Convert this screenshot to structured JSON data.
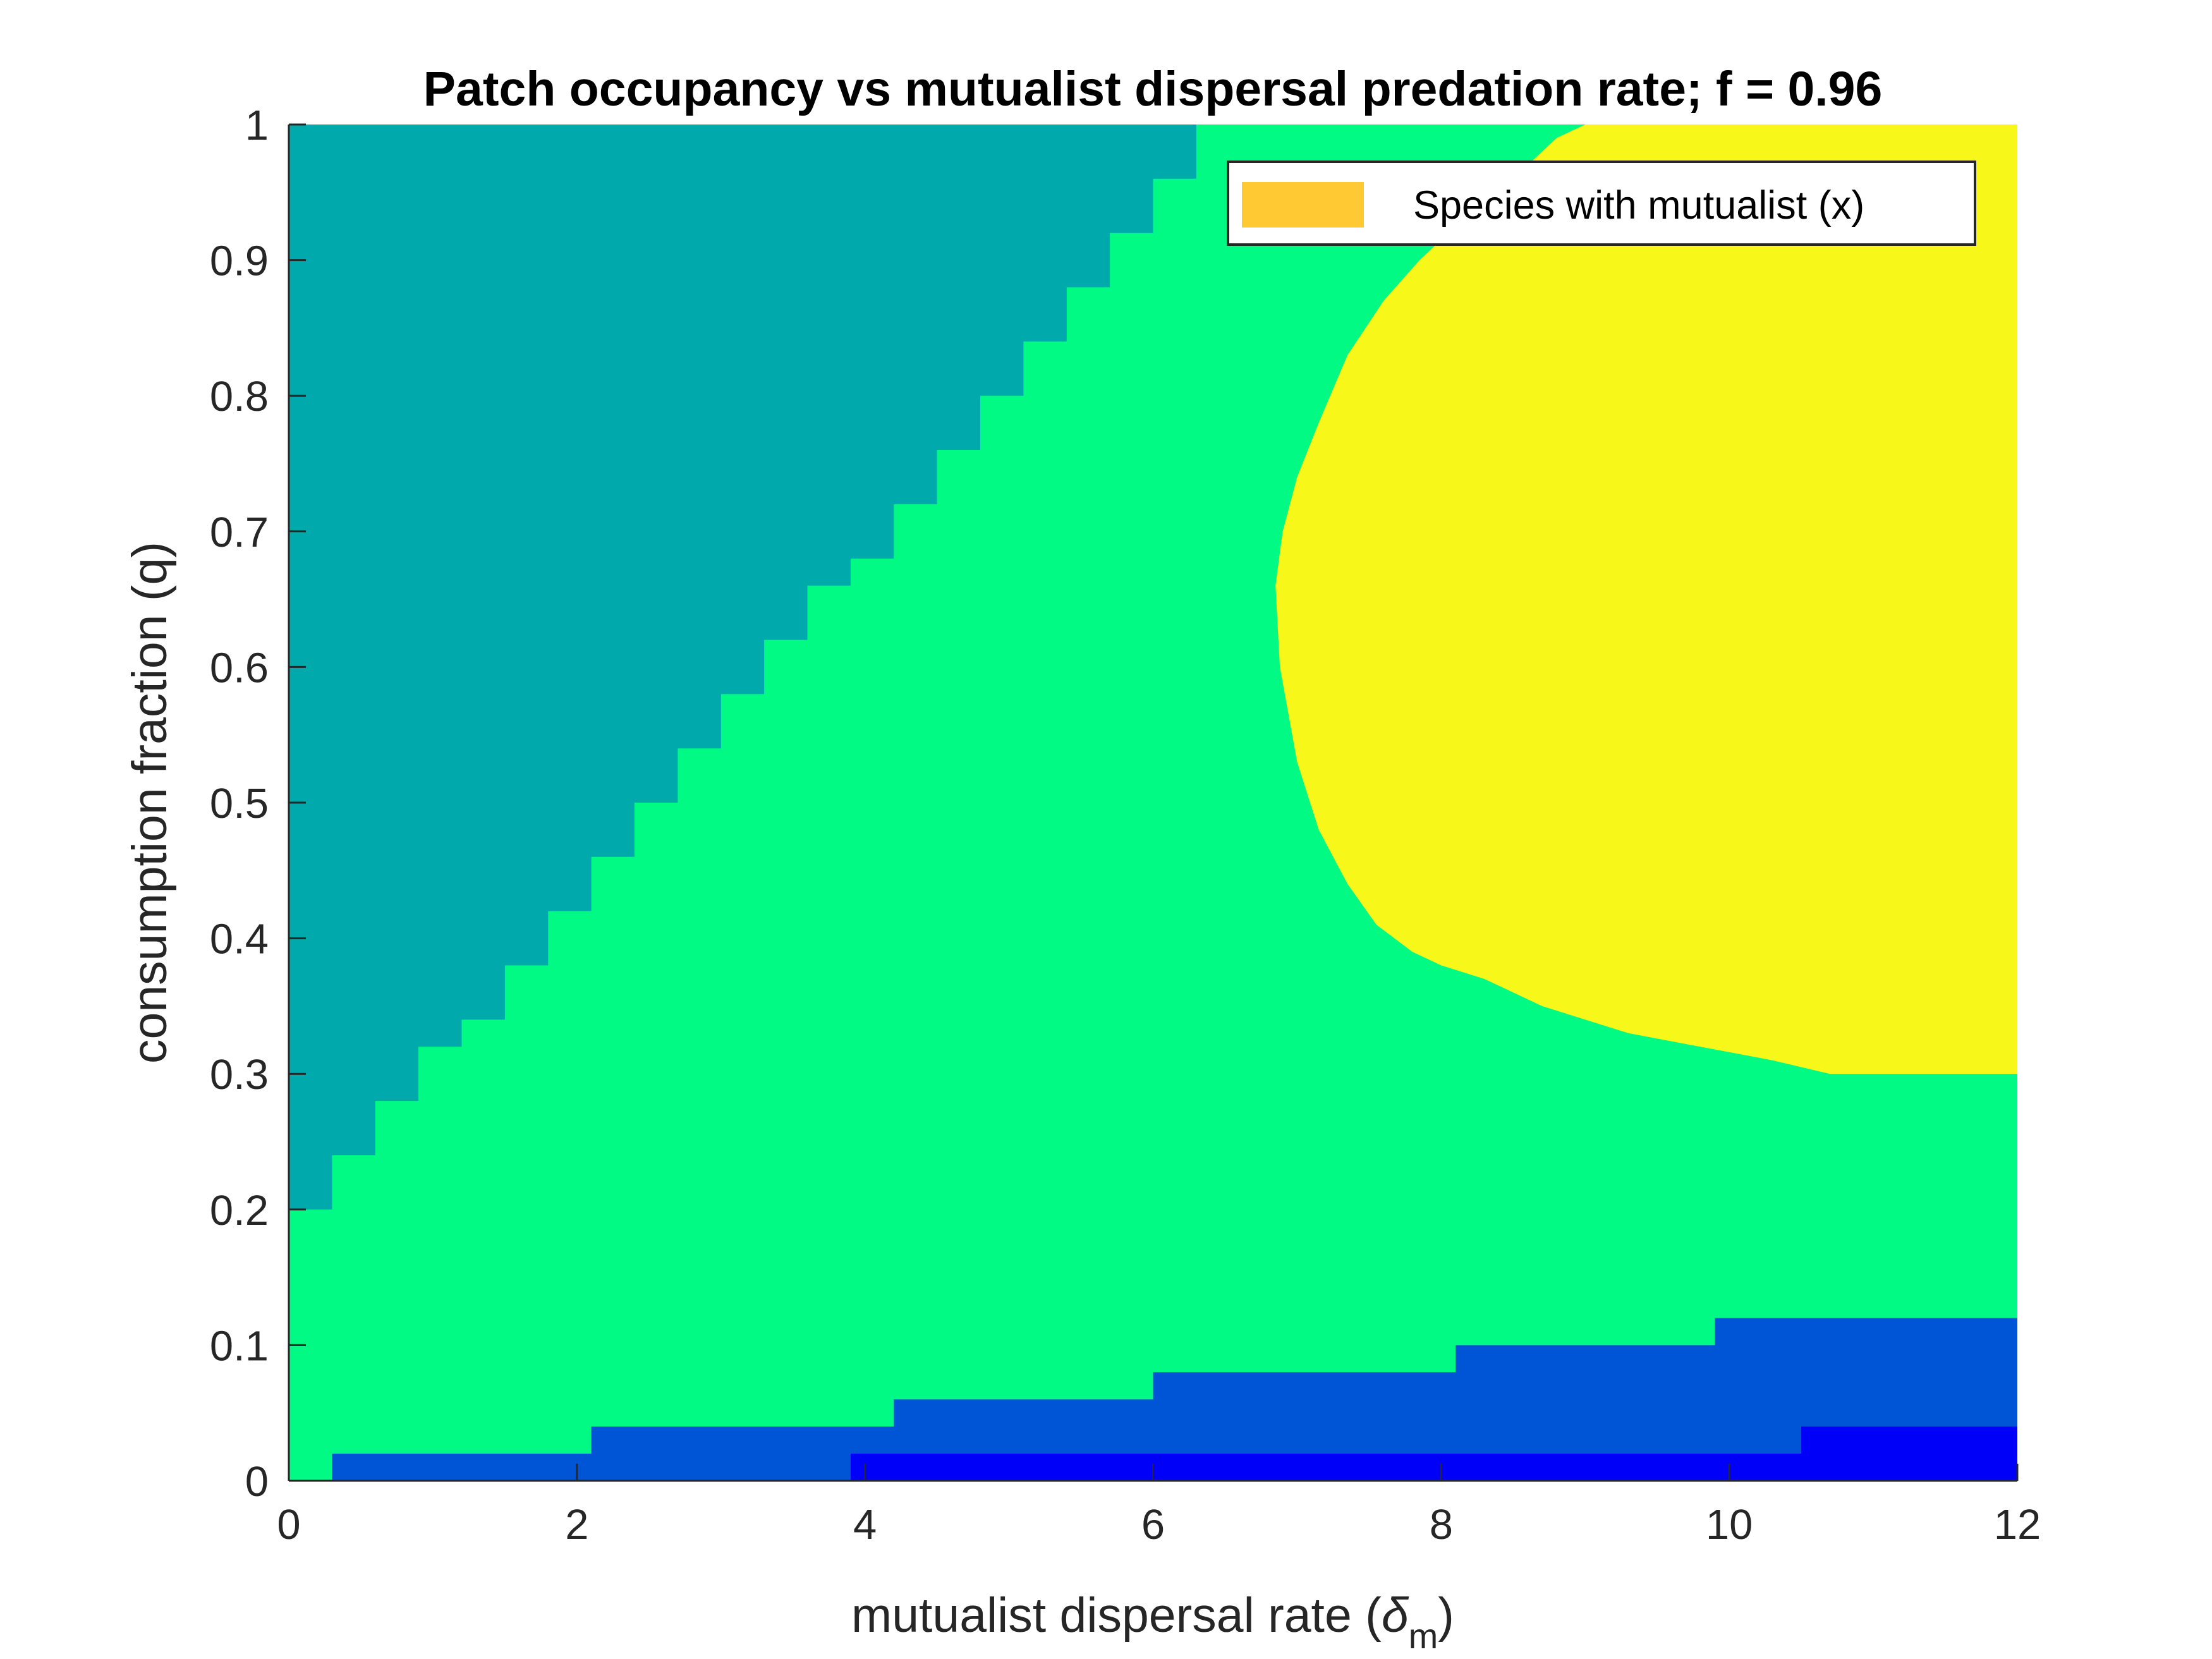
{
  "chart_data": {
    "type": "area",
    "title": "Patch occupancy vs mutualist dispersal predation rate; f = 0.96",
    "xlabel": "mutualist dispersal rate (δm)",
    "xlabel_main": "mutualist dispersal rate (",
    "xlabel_symbol": "δ",
    "xlabel_subscript": "m",
    "xlabel_close": ")",
    "ylabel": "consumption fraction (q)",
    "xlim": [
      0,
      12
    ],
    "ylim": [
      0,
      1
    ],
    "x_ticks": [
      0,
      2,
      4,
      6,
      8,
      10,
      12
    ],
    "y_ticks": [
      0,
      0.1,
      0.2,
      0.3,
      0.4,
      0.5,
      0.6,
      0.7,
      0.8,
      0.9,
      1
    ],
    "grid": false,
    "legend": {
      "position": "top-right",
      "entries": [
        {
          "label": "Species with mutualist (x)",
          "color": "#FFC933"
        }
      ]
    },
    "colors": {
      "teal_region": "#00A9AB",
      "green_region": "#00FA84",
      "yellow_region": "#F7F71A",
      "mid_blue_region": "#0055D6",
      "deep_blue_region": "#0000FA",
      "legend_swatch": "#FFC933"
    },
    "regions": [
      {
        "name": "teal-region",
        "color": "#00A9AB",
        "x": [
          0,
          0,
          6.3,
          6.3,
          6.0,
          6.0,
          5.7,
          5.7,
          5.4,
          5.4,
          5.1,
          5.1,
          4.8,
          4.8,
          4.5,
          4.5,
          4.2,
          4.2,
          3.9,
          3.9,
          3.6,
          3.6,
          3.3,
          3.3,
          3.0,
          3.0,
          2.7,
          2.7,
          2.4,
          2.4,
          2.1,
          2.1,
          1.8,
          1.8,
          1.5,
          1.5,
          1.2,
          1.2,
          0.9,
          0.9,
          0.6,
          0.6,
          0.3,
          0.3
        ],
        "y": [
          0.2,
          1.0,
          1.0,
          0.96,
          0.96,
          0.92,
          0.92,
          0.88,
          0.88,
          0.84,
          0.84,
          0.8,
          0.8,
          0.76,
          0.76,
          0.72,
          0.72,
          0.68,
          0.68,
          0.66,
          0.66,
          0.62,
          0.62,
          0.58,
          0.58,
          0.54,
          0.54,
          0.5,
          0.5,
          0.46,
          0.46,
          0.42,
          0.42,
          0.38,
          0.38,
          0.34,
          0.34,
          0.32,
          0.32,
          0.28,
          0.28,
          0.24,
          0.24,
          0.2
        ]
      },
      {
        "name": "yellow-region",
        "color": "#F7F71A",
        "x": [
          9.0,
          12.0,
          12.0,
          11.5,
          10.7,
          10.3,
          9.8,
          9.3,
          9.0,
          8.7,
          8.5,
          8.3,
          8.0,
          7.8,
          7.55,
          7.35,
          7.15,
          7.0,
          6.88,
          6.85,
          6.9,
          7.0,
          7.15,
          7.35,
          7.6,
          7.85,
          8.15,
          8.5,
          8.8
        ],
        "y": [
          1.0,
          1.0,
          0.3,
          0.3,
          0.3,
          0.31,
          0.32,
          0.33,
          0.34,
          0.35,
          0.36,
          0.37,
          0.38,
          0.39,
          0.41,
          0.44,
          0.48,
          0.53,
          0.6,
          0.66,
          0.7,
          0.74,
          0.78,
          0.83,
          0.87,
          0.9,
          0.93,
          0.96,
          0.99
        ]
      },
      {
        "name": "mid-blue-region",
        "color": "#0055D6",
        "x": [
          0.3,
          0.3,
          2.1,
          2.1,
          4.2,
          4.2,
          6.0,
          6.0,
          8.1,
          8.1,
          9.9,
          9.9,
          12.0,
          12.0
        ],
        "y": [
          0,
          0.02,
          0.02,
          0.04,
          0.04,
          0.06,
          0.06,
          0.08,
          0.08,
          0.1,
          0.1,
          0.12,
          0.12,
          0
        ]
      },
      {
        "name": "deep-blue-region",
        "color": "#0000FA",
        "x": [
          3.9,
          3.9,
          10.5,
          10.5,
          12.0,
          12.0
        ],
        "y": [
          0,
          0.02,
          0.02,
          0.04,
          0.04,
          0
        ]
      }
    ]
  }
}
